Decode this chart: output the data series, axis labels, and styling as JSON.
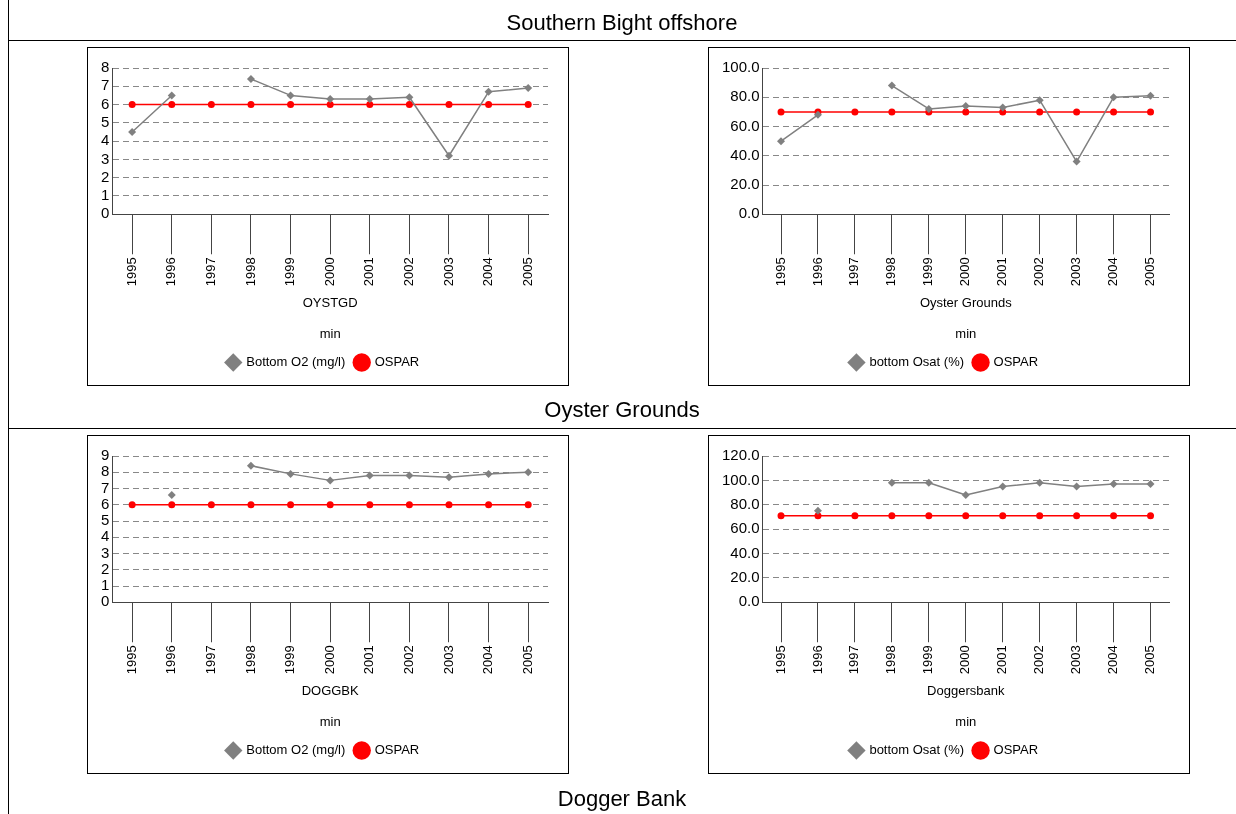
{
  "chart_data": [
    {
      "type": "line",
      "annotations": [
        "Southern Bight offshore"
      ],
      "xlabel": "OYSTGD\nmin",
      "categories": [
        "1995",
        "1996",
        "1997",
        "1998",
        "1999",
        "2000",
        "2001",
        "2002",
        "2003",
        "2004",
        "2005"
      ],
      "series": [
        {
          "name": "Bottom O2 (mg/l)",
          "color": "#808080",
          "marker": "diamond",
          "values": [
            4.5,
            6.5,
            null,
            7.4,
            6.5,
            6.3,
            6.3,
            6.4,
            3.2,
            6.7,
            6.9
          ]
        },
        {
          "name": "OSPAR",
          "color": "#ff0000",
          "marker": "circle",
          "values": [
            6,
            6,
            6,
            6,
            6,
            6,
            6,
            6,
            6,
            6,
            6
          ]
        }
      ],
      "ylim": [
        0,
        8
      ],
      "yticks": [
        0,
        1,
        2,
        3,
        4,
        5,
        6,
        7,
        8
      ],
      "grid": "y",
      "legend": "bottom"
    },
    {
      "type": "line",
      "annotations": [
        "Oyster Grounds"
      ],
      "xlabel": "Oyster Grounds\nmin",
      "categories": [
        "1995",
        "1996",
        "1997",
        "1998",
        "1999",
        "2000",
        "2001",
        "2002",
        "2003",
        "2004",
        "2005"
      ],
      "series": [
        {
          "name": "bottom Osat (%)",
          "color": "#808080",
          "marker": "diamond",
          "values": [
            50,
            68,
            null,
            88,
            72,
            74,
            73,
            78,
            36,
            80,
            81
          ]
        },
        {
          "name": "OSPAR",
          "color": "#ff0000",
          "marker": "circle",
          "values": [
            70,
            70,
            70,
            70,
            70,
            70,
            70,
            70,
            70,
            70,
            70
          ]
        }
      ],
      "ylim": [
        0,
        100
      ],
      "yticks": [
        {
          "value": 0,
          "label": "0.0"
        },
        {
          "value": 20,
          "label": "20.0"
        },
        {
          "value": 40,
          "label": "40.0"
        },
        {
          "value": 60,
          "label": "60.0"
        },
        {
          "value": 80,
          "label": "80.0"
        },
        {
          "value": 100,
          "label": "100.0"
        }
      ],
      "grid": "y",
      "legend": "bottom"
    },
    {
      "type": "line",
      "xlabel": "DOGGBK\nmin",
      "categories": [
        "1995",
        "1996",
        "1997",
        "1998",
        "1999",
        "2000",
        "2001",
        "2002",
        "2003",
        "2004",
        "2005"
      ],
      "series": [
        {
          "name": "Bottom O2 (mg/l)",
          "color": "#808080",
          "marker": "diamond",
          "values": [
            null,
            6.6,
            null,
            8.4,
            7.9,
            7.5,
            7.8,
            7.8,
            7.7,
            7.9,
            8
          ]
        },
        {
          "name": "OSPAR",
          "color": "#ff0000",
          "marker": "circle",
          "values": [
            6,
            6,
            6,
            6,
            6,
            6,
            6,
            6,
            6,
            6,
            6
          ]
        }
      ],
      "ylim": [
        0,
        9
      ],
      "yticks": [
        0,
        1,
        2,
        3,
        4,
        5,
        6,
        7,
        8,
        9
      ],
      "grid": "y",
      "legend": "bottom"
    },
    {
      "type": "line",
      "annotations": [
        "Dogger Bank"
      ],
      "xlabel": "Doggersbank\nmin",
      "categories": [
        "1995",
        "1996",
        "1997",
        "1998",
        "1999",
        "2000",
        "2001",
        "2002",
        "2003",
        "2004",
        "2005"
      ],
      "series": [
        {
          "name": "bottom Osat (%)",
          "color": "#808080",
          "marker": "diamond",
          "values": [
            null,
            75,
            null,
            98,
            98,
            88,
            95,
            98,
            95,
            97,
            97
          ]
        },
        {
          "name": "OSPAR",
          "color": "#ff0000",
          "marker": "circle",
          "values": [
            71,
            71,
            71,
            71,
            71,
            71,
            71,
            71,
            71,
            71,
            71
          ]
        }
      ],
      "ylim": [
        0,
        120
      ],
      "yticks": [
        {
          "value": 0,
          "label": "0.0"
        },
        {
          "value": 20,
          "label": "20.0"
        },
        {
          "value": 40,
          "label": "40.0"
        },
        {
          "value": 60,
          "label": "60.0"
        },
        {
          "value": 80,
          "label": "80.0"
        },
        {
          "value": 100,
          "label": "100.0"
        },
        {
          "value": 120,
          "label": "120.0"
        }
      ],
      "grid": "y",
      "legend": "bottom"
    }
  ]
}
